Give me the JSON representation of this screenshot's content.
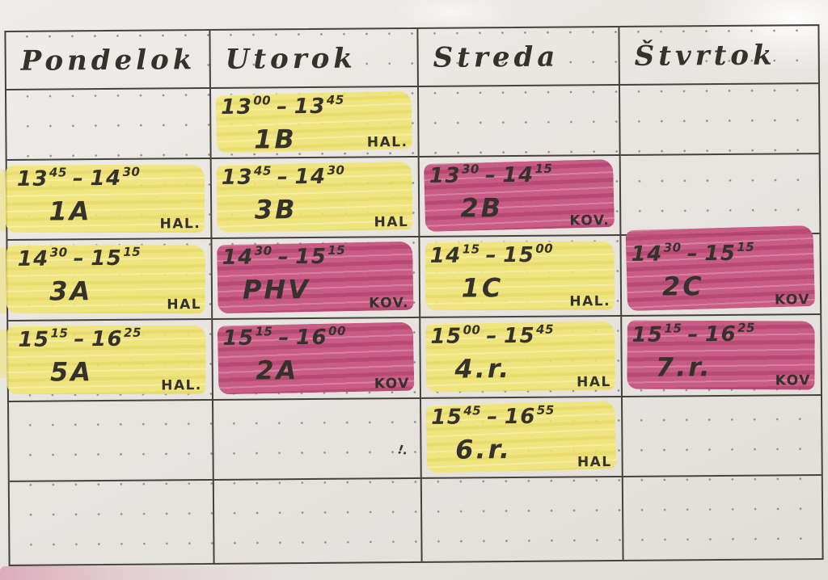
{
  "document": {
    "kind": "handwritten weekly training schedule on dotted paper",
    "days": [
      {
        "id": "pondelok",
        "label": "Pondelok"
      },
      {
        "id": "utorok",
        "label": "Utorok"
      },
      {
        "id": "streda",
        "label": "Streda"
      },
      {
        "id": "stvrtok",
        "label": "Štvrtok"
      }
    ],
    "rows": [
      {
        "cells": [
          null,
          {
            "time_start": "13:00",
            "time_end": "13:45",
            "group": "1B",
            "location": "HAL.",
            "highlight": "yellow"
          },
          null,
          null
        ]
      },
      {
        "cells": [
          {
            "time_start": "13:45",
            "time_end": "14:30",
            "group": "1A",
            "location": "HAL.",
            "highlight": "yellow"
          },
          {
            "time_start": "13:45",
            "time_end": "14:30",
            "group": "3B",
            "location": "HAL",
            "highlight": "yellow"
          },
          {
            "time_start": "13:30",
            "time_end": "14:15",
            "group": "2B",
            "location": "KOV.",
            "highlight": "pink"
          },
          null
        ]
      },
      {
        "cells": [
          {
            "time_start": "14:30",
            "time_end": "15:15",
            "group": "3A",
            "location": "HAL",
            "highlight": "yellow"
          },
          {
            "time_start": "14:30",
            "time_end": "15:15",
            "group": "PHV",
            "location": "KOV.",
            "highlight": "pink"
          },
          {
            "time_start": "14:15",
            "time_end": "15:00",
            "group": "1C",
            "location": "HAL.",
            "highlight": "yellow"
          },
          {
            "time_start": "14:30",
            "time_end": "15:15",
            "group": "2C",
            "location": "KOV",
            "highlight": "pink"
          }
        ]
      },
      {
        "cells": [
          {
            "time_start": "15:15",
            "time_end": "16:25",
            "group": "5A",
            "location": "HAL.",
            "highlight": "yellow"
          },
          {
            "time_start": "15:15",
            "time_end": "16:00",
            "group": "2A",
            "location": "KOV",
            "highlight": "pink"
          },
          {
            "time_start": "15:00",
            "time_end": "15:45",
            "group": "4.r.",
            "location": "HAL",
            "highlight": "yellow"
          },
          {
            "time_start": "15:15",
            "time_end": "16:25",
            "group": "7.r.",
            "location": "KOV",
            "highlight": "pink"
          }
        ]
      },
      {
        "cells": [
          null,
          null,
          {
            "time_start": "15:45",
            "time_end": "16:55",
            "group": "6.r.",
            "location": "HAL",
            "highlight": "yellow"
          },
          null
        ]
      },
      {
        "cells": [
          null,
          null,
          null,
          null
        ]
      }
    ],
    "stray_mark": "!.",
    "colors": {
      "paper": "#e9e6e2",
      "ink": "#35322c",
      "grid_line": "#45413b",
      "dot": "#94908a",
      "yellow_marker": "#f0e470",
      "pink_marker": "#c65480"
    }
  }
}
